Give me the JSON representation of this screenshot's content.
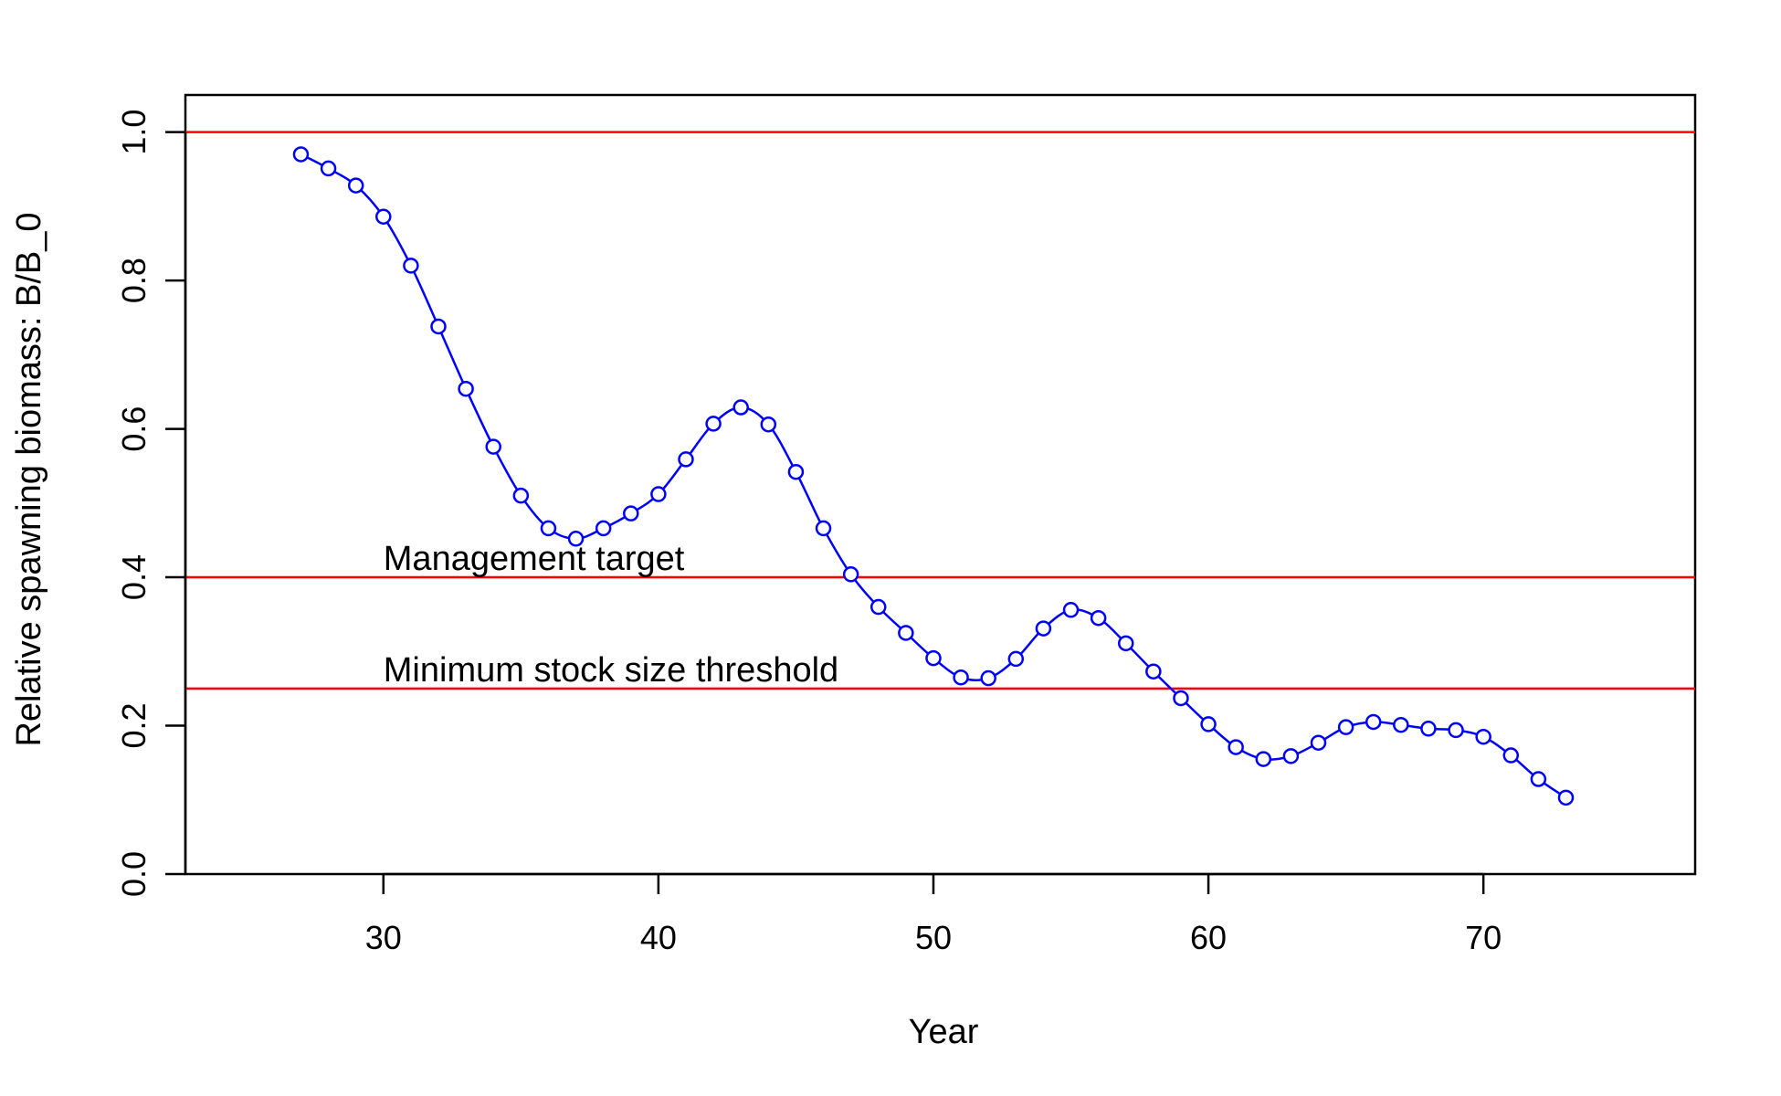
{
  "chart_data": {
    "type": "line",
    "title": "",
    "xlabel": "Year",
    "ylabel": "Relative spawning biomass: B/B_0",
    "xlim": [
      22.8,
      77.7
    ],
    "ylim": [
      0,
      1.05
    ],
    "xticks": [
      30,
      40,
      50,
      60,
      70
    ],
    "yticks": [
      0.0,
      0.2,
      0.4,
      0.6,
      0.8,
      1.0
    ],
    "ytick_labels": [
      "0.0",
      "0.2",
      "0.4",
      "0.6",
      "0.8",
      "1.0"
    ],
    "grid": false,
    "series": [
      {
        "color": "#0000ff",
        "marker": "open-circle",
        "x": [
          27,
          28,
          29,
          30,
          31,
          32,
          33,
          34,
          35,
          36,
          37,
          38,
          39,
          40,
          41,
          42,
          43,
          44,
          45,
          46,
          47,
          48,
          49,
          50,
          51,
          52,
          53,
          54,
          55,
          56,
          57,
          58,
          59,
          60,
          61,
          62,
          63,
          64,
          65,
          66,
          67,
          68,
          69,
          70,
          71,
          72,
          73
        ],
        "y": [
          0.97,
          0.951,
          0.928,
          0.886,
          0.82,
          0.738,
          0.654,
          0.576,
          0.51,
          0.466,
          0.452,
          0.466,
          0.486,
          0.512,
          0.559,
          0.607,
          0.629,
          0.606,
          0.542,
          0.466,
          0.404,
          0.36,
          0.325,
          0.291,
          0.265,
          0.264,
          0.29,
          0.331,
          0.356,
          0.345,
          0.311,
          0.273,
          0.237,
          0.202,
          0.171,
          0.155,
          0.159,
          0.177,
          0.198,
          0.205,
          0.201,
          0.196,
          0.194,
          0.185,
          0.16,
          0.128,
          0.103
        ]
      }
    ],
    "hlines": [
      {
        "y": 1.0,
        "color": "#ff0000",
        "label": ""
      },
      {
        "y": 0.4,
        "color": "#ff0000",
        "label": "Management target",
        "label_x": 30
      },
      {
        "y": 0.25,
        "color": "#ff0000",
        "label": "Minimum stock size threshold",
        "label_x": 30
      }
    ]
  }
}
